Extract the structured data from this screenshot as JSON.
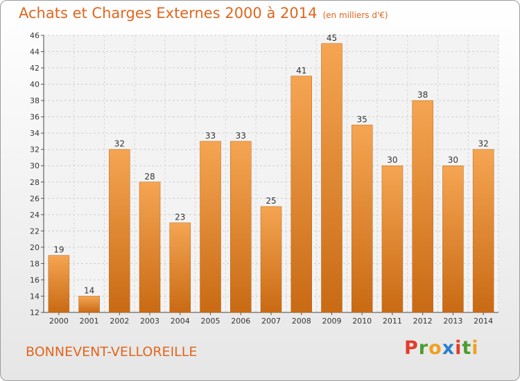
{
  "chart_data": {
    "type": "bar",
    "title": "Achats et Charges Externes 2000 à 2014",
    "subtitle": "(en milliers d'€)",
    "categories": [
      "2000",
      "2001",
      "2002",
      "2003",
      "2004",
      "2005",
      "2006",
      "2007",
      "2008",
      "2009",
      "2010",
      "2011",
      "2012",
      "2013",
      "2014"
    ],
    "values": [
      19,
      14,
      32,
      28,
      23,
      33,
      33,
      25,
      41,
      45,
      35,
      30,
      38,
      30,
      32
    ],
    "ylim": [
      12,
      46
    ],
    "yticks": [
      12,
      14,
      16,
      18,
      20,
      22,
      24,
      26,
      28,
      30,
      32,
      34,
      36,
      38,
      40,
      42,
      44,
      46
    ],
    "grid": true,
    "legend": "none",
    "bar_color": "#f19a3e"
  },
  "footer": {
    "place": "BONNEVENT-VELLOREILLE",
    "logo_text": "Proxiti",
    "logo_colors": [
      "#e33b2a",
      "#4a9d2f",
      "#f0a020",
      "#2b7fcf",
      "#e33b2a",
      "#4a9d2f",
      "#f0a020"
    ]
  }
}
